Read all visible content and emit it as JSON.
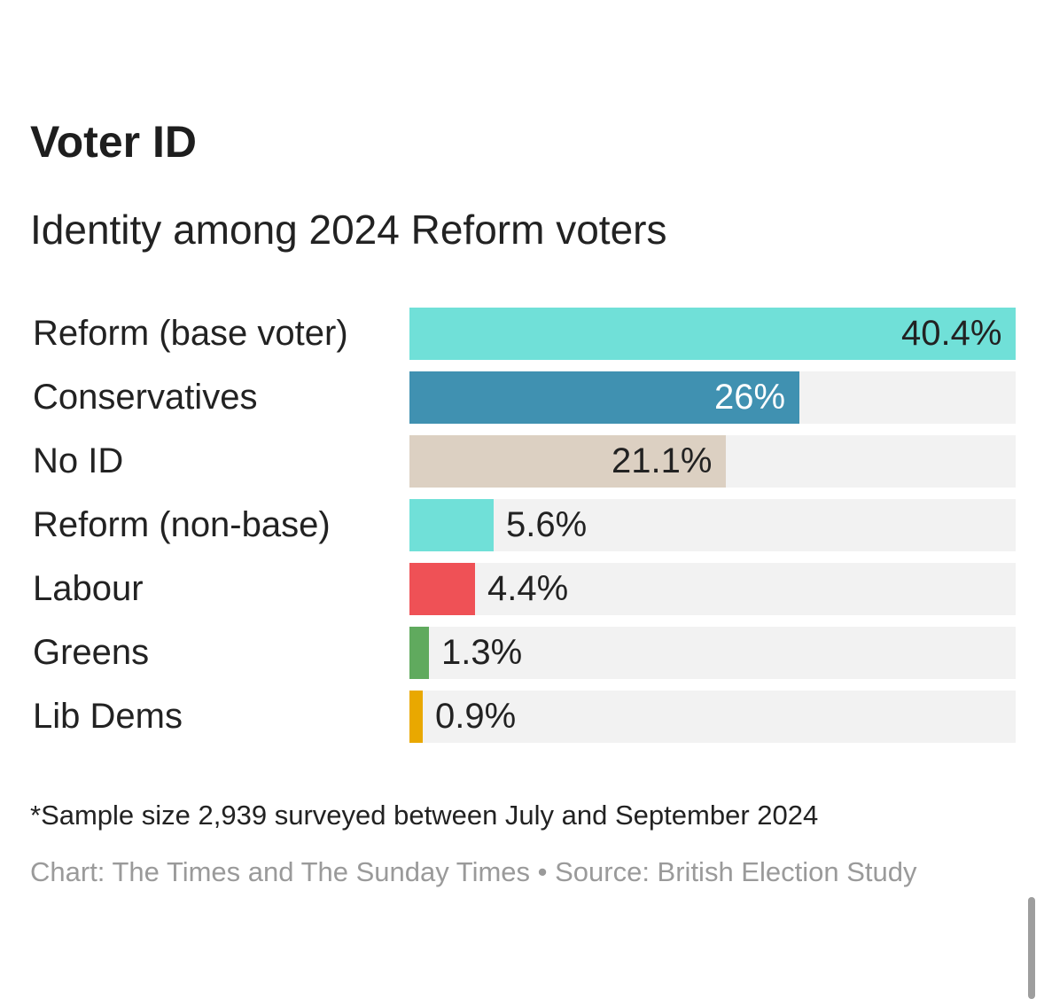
{
  "header": {
    "title": "Voter ID",
    "subtitle": "Identity among 2024 Reform voters"
  },
  "chart_data": {
    "type": "bar",
    "orientation": "horizontal",
    "title": "Voter ID",
    "subtitle": "Identity among 2024 Reform voters",
    "categories": [
      "Reform (base voter)",
      "Conservatives",
      "No ID",
      "Reform (non-base)",
      "Labour",
      "Greens",
      "Lib Dems"
    ],
    "values": [
      40.4,
      26,
      21.1,
      5.6,
      4.4,
      1.3,
      0.9
    ],
    "value_labels": [
      "40.4%",
      "26%",
      "21.1%",
      "5.6%",
      "4.4%",
      "1.3%",
      "0.9%"
    ],
    "colors": [
      "#70e0d8",
      "#4091b1",
      "#dcd0c2",
      "#70e0d8",
      "#ef5156",
      "#60aa5e",
      "#e9a800"
    ],
    "label_colors": [
      "#222222",
      "#ffffff",
      "#222222",
      "#222222",
      "#222222",
      "#222222",
      "#222222"
    ],
    "xlim": [
      0,
      40.4
    ],
    "xlabel": "",
    "ylabel": "",
    "track_color": "#f2f2f2"
  },
  "footer": {
    "note": "*Sample size 2,939 surveyed between July and September 2024",
    "source": "Chart: The Times and The Sunday Times • Source: British Election Study"
  }
}
